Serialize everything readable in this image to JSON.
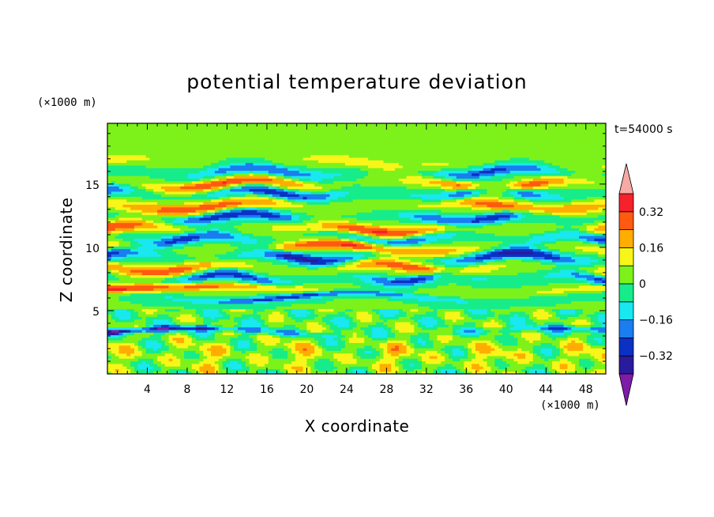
{
  "chart_data": {
    "type": "heatmap",
    "title": "potential temperature deviation",
    "xlabel": "X coordinate",
    "ylabel": "Z coordinate",
    "x_unit": "(×1000 m)",
    "y_unit": "(×1000 m)",
    "time_label": "t=54000 s",
    "xlim": [
      0,
      50
    ],
    "ylim": [
      0,
      19.8
    ],
    "xticks": [
      4,
      8,
      12,
      16,
      20,
      24,
      28,
      32,
      36,
      40,
      44,
      48
    ],
    "xtick_labels": [
      "4",
      "8",
      "12",
      "16",
      "20",
      "24",
      "28",
      "32",
      "36",
      "40",
      "44",
      "48"
    ],
    "yticks": [
      5,
      10,
      15
    ],
    "ytick_labels": [
      "5",
      "10",
      "15"
    ],
    "colorbar": {
      "levels": [
        -0.4,
        -0.32,
        -0.24,
        -0.16,
        -0.08,
        0,
        0.08,
        0.16,
        0.24,
        0.32,
        0.4
      ],
      "labels": [
        "0.32",
        "0.16",
        "0",
        "−0.16",
        "−0.32"
      ],
      "label_values": [
        0.32,
        0.16,
        0,
        -0.16,
        -0.32
      ],
      "colors": [
        "#7e1ba8",
        "#2a1a9c",
        "#0b31c4",
        "#1a7df0",
        "#19e8f0",
        "#17ec8a",
        "#7df21a",
        "#f8f519",
        "#ffad00",
        "#ff5a12",
        "#f5212b",
        "#f7a9a5"
      ]
    },
    "bands": [
      {
        "z": 18.2,
        "amp": 0.03,
        "freq": 1.0,
        "phase": 0.0,
        "width": 1.0
      },
      {
        "z": 16.7,
        "amp": 0.14,
        "freq": 1.6,
        "phase": 0.4,
        "width": 0.5
      },
      {
        "z": 16.0,
        "amp": -0.26,
        "freq": 2.1,
        "phase": 1.2,
        "width": 0.45
      },
      {
        "z": 15.0,
        "amp": 0.34,
        "freq": 1.8,
        "phase": 2.0,
        "width": 0.45
      },
      {
        "z": 14.3,
        "amp": -0.33,
        "freq": 2.3,
        "phase": 0.7,
        "width": 0.45
      },
      {
        "z": 13.3,
        "amp": 0.3,
        "freq": 1.5,
        "phase": 2.6,
        "width": 0.5
      },
      {
        "z": 12.4,
        "amp": -0.33,
        "freq": 2.0,
        "phase": 1.7,
        "width": 0.45
      },
      {
        "z": 11.5,
        "amp": 0.34,
        "freq": 1.7,
        "phase": 0.2,
        "width": 0.5
      },
      {
        "z": 10.7,
        "amp": -0.3,
        "freq": 2.4,
        "phase": 2.2,
        "width": 0.45
      },
      {
        "z": 10.0,
        "amp": 0.36,
        "freq": 1.4,
        "phase": 1.0,
        "width": 0.45
      },
      {
        "z": 9.3,
        "amp": -0.35,
        "freq": 2.2,
        "phase": 0.5,
        "width": 0.45
      },
      {
        "z": 8.4,
        "amp": 0.3,
        "freq": 1.9,
        "phase": 2.9,
        "width": 0.45
      },
      {
        "z": 7.6,
        "amp": -0.3,
        "freq": 2.5,
        "phase": 1.4,
        "width": 0.4
      },
      {
        "z": 6.6,
        "amp": 0.38,
        "freq": 0.6,
        "phase": 0.3,
        "width": 0.35
      },
      {
        "z": 6.1,
        "amp": -0.3,
        "freq": 1.1,
        "phase": 1.9,
        "width": 0.25
      },
      {
        "z": 3.3,
        "amp": -0.36,
        "freq": 0.8,
        "phase": 0.0,
        "width": 0.22
      },
      {
        "z": 1.6,
        "amp": 0.12,
        "freq": 5.0,
        "phase": 0.0,
        "width": 1.4
      }
    ]
  }
}
